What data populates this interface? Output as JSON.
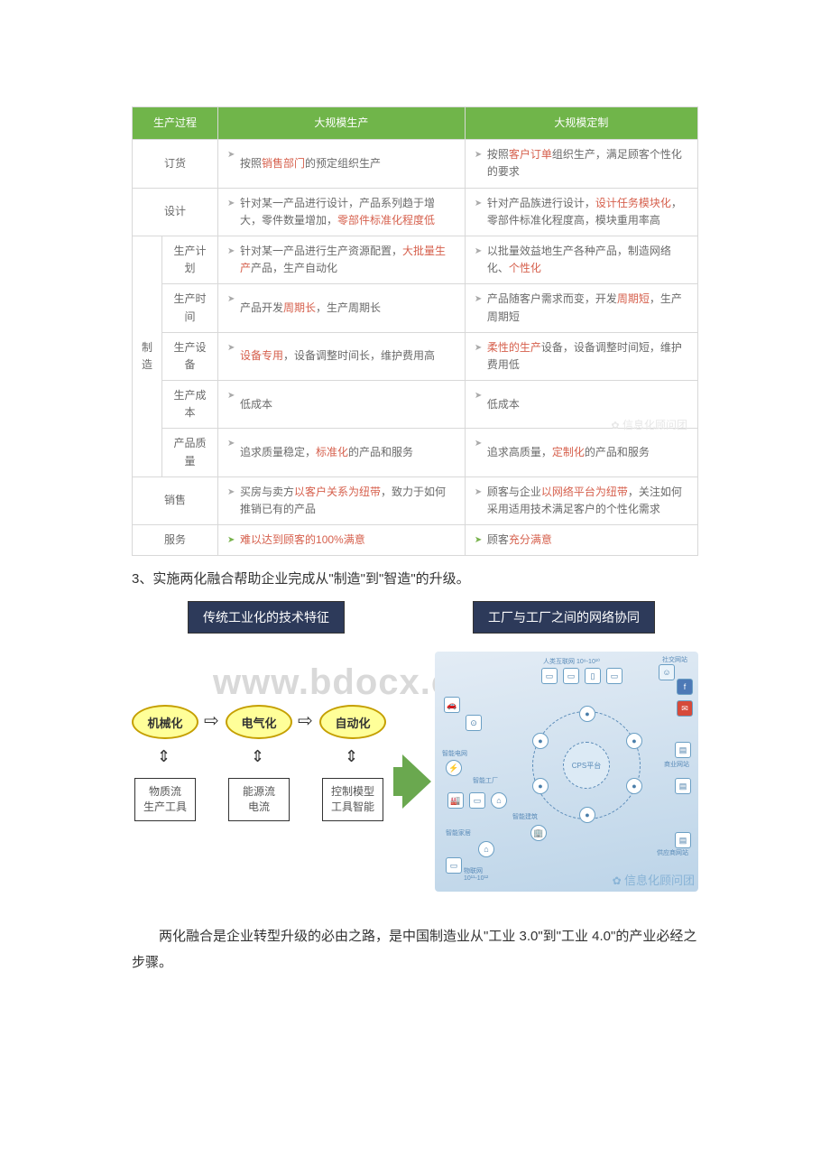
{
  "table": {
    "headers": {
      "c1": "生产过程",
      "c2": "大规模生产",
      "c3": "大规模定制"
    },
    "rows": [
      {
        "label": "订货",
        "massL": [
          {
            "t": "按照",
            "n": ""
          },
          {
            "t": "销售部门",
            "n": "hl"
          },
          {
            "t": "的预定组织生产",
            "n": ""
          }
        ],
        "massR": [
          {
            "t": "按照",
            "n": ""
          },
          {
            "t": "客户订单",
            "n": "hl"
          },
          {
            "t": "组织生产，满足顾客个性化的要求",
            "n": ""
          }
        ]
      },
      {
        "label": "设计",
        "massL": [
          {
            "t": "针对某一产品进行设计，产品系列趋于增大，零件数量增加，",
            "n": ""
          },
          {
            "t": "零部件标准化程度低",
            "n": "hl"
          }
        ],
        "massR": [
          {
            "t": "针对产品族进行设计，",
            "n": ""
          },
          {
            "t": "设计任务模块化",
            "n": "hl"
          },
          {
            "t": "，零部件标准化程度高，模块重用率高",
            "n": ""
          }
        ]
      },
      {
        "groupLabel": "制造",
        "sub": [
          {
            "label": "生产计划",
            "massL": [
              {
                "t": "针对某一产品进行生产资源配置，",
                "n": ""
              },
              {
                "t": "大批量生产",
                "n": "hl"
              },
              {
                "t": "产品，生产自动化",
                "n": ""
              }
            ],
            "massR": [
              {
                "t": "以批量效益地生产各种产品，制造网络化、",
                "n": ""
              },
              {
                "t": "个性化",
                "n": "hl"
              }
            ]
          },
          {
            "label": "生产时间",
            "massL": [
              {
                "t": "产品开发",
                "n": ""
              },
              {
                "t": "周期长",
                "n": "hl"
              },
              {
                "t": "，生产周期长",
                "n": ""
              }
            ],
            "massR": [
              {
                "t": "产品随客户需求而变，开发",
                "n": ""
              },
              {
                "t": "周期短",
                "n": "hl"
              },
              {
                "t": "，生产周期短",
                "n": ""
              }
            ]
          },
          {
            "label": "生产设备",
            "massL": [
              {
                "t": "设备专用",
                "n": "hl"
              },
              {
                "t": "，设备调整时间长，维护费用高",
                "n": ""
              }
            ],
            "massR": [
              {
                "t": "柔性的生产",
                "n": "hl"
              },
              {
                "t": "设备，设备调整时间短，维护费用低",
                "n": ""
              }
            ]
          },
          {
            "label": "生产成本",
            "massL": [
              {
                "t": "低成本",
                "n": ""
              }
            ],
            "massR": [
              {
                "t": "低成本",
                "n": ""
              }
            ]
          },
          {
            "label": "产品质量",
            "massL": [
              {
                "t": "追求质量稳定，",
                "n": ""
              },
              {
                "t": "标准化",
                "n": "hl"
              },
              {
                "t": "的产品和服务",
                "n": ""
              }
            ],
            "massR": [
              {
                "t": "追求高质量，",
                "n": ""
              },
              {
                "t": "定制化",
                "n": "hl"
              },
              {
                "t": "的产品和服务",
                "n": ""
              }
            ]
          }
        ]
      },
      {
        "label": "销售",
        "massL": [
          {
            "t": "买房与卖方",
            "n": ""
          },
          {
            "t": "以客户关系为纽带",
            "n": "hl"
          },
          {
            "t": "，致力于如何推销已有的产品",
            "n": ""
          }
        ],
        "massR": [
          {
            "t": "顾客与企业",
            "n": ""
          },
          {
            "t": "以网络平台为纽带",
            "n": "hl"
          },
          {
            "t": "，关注如何采用适用技术满足客户的个性化需求",
            "n": ""
          }
        ]
      },
      {
        "label": "服务",
        "massL": [
          {
            "t": "难以达到顾客的100%满意",
            "n": "hl"
          }
        ],
        "massLGreen": true,
        "massR": [
          {
            "t": "顾客",
            "n": ""
          },
          {
            "t": "充分满意",
            "n": "hl"
          }
        ],
        "massRGreen": true
      }
    ],
    "watermark1": "信息化顾问团"
  },
  "section": {
    "numberedText": "3、实施两化融合帮助企业完成从\"制造\"到\"智造\"的升级。"
  },
  "diagram": {
    "titleLeft": "传统工业化的技术特征",
    "titleRight": "工厂与工厂之间的网络协同",
    "watermark": "www.bdocx.com",
    "ellipses": {
      "a": "机械化",
      "b": "电气化",
      "c": "自动化"
    },
    "rects": {
      "a": "物质流\n生产工具",
      "b": "能源流\n电流",
      "c": "控制模型\n工具智能"
    },
    "cps": "CPS\n平台",
    "net": {
      "topLabel": "人类互联网 10⁹-10¹⁰",
      "labels": {
        "social": "社交网站",
        "smartgrid": "智能电网",
        "smartfactory": "智能工厂",
        "smartbuilding": "智能建筑",
        "smarthome": "智能家居",
        "iot": "物联网\n10¹¹-10¹²",
        "commerce": "商业网站",
        "supplier": "供应商网站"
      }
    },
    "watermark2": "信息化顾问团"
  },
  "paragraph": "两化融合是企业转型升级的必由之路，是中国制造业从\"工业 3.0\"到\"工业 4.0\"的产业必经之步骤。"
}
